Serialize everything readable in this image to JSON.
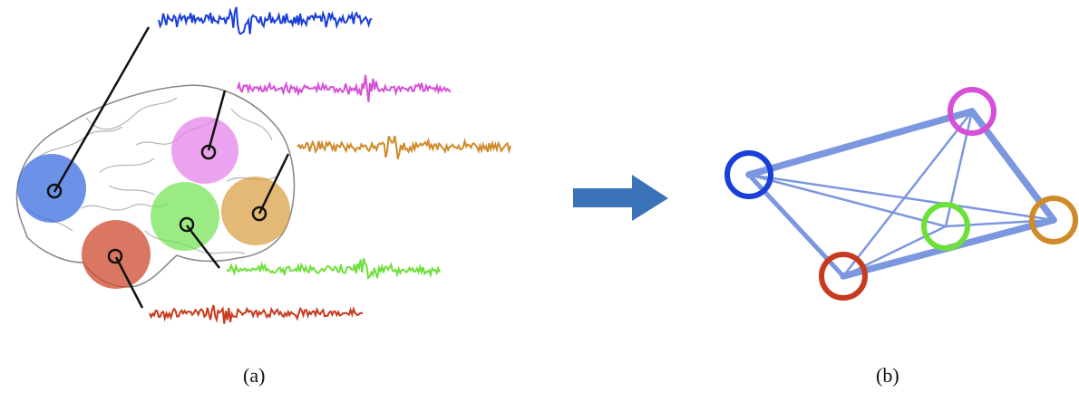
{
  "panels": {
    "a": {
      "caption": "(a)"
    },
    "b": {
      "caption": "(b)"
    }
  },
  "regions": [
    {
      "id": "blue",
      "color": "#3b6de0",
      "signal_color": "#1a3fd8"
    },
    {
      "id": "magenta",
      "color": "#e27ae8",
      "signal_color": "#d64fd8"
    },
    {
      "id": "orange",
      "color": "#d99a3a",
      "signal_color": "#d08a2a"
    },
    {
      "id": "green",
      "color": "#6fe34f",
      "signal_color": "#6ee03a"
    },
    {
      "id": "red",
      "color": "#cc4a2e",
      "signal_color": "#c83a1e"
    }
  ],
  "connections": [
    {
      "from": "blue",
      "to": "magenta",
      "weight": 3
    },
    {
      "from": "blue",
      "to": "orange",
      "weight": 1
    },
    {
      "from": "blue",
      "to": "green",
      "weight": 1
    },
    {
      "from": "blue",
      "to": "red",
      "weight": 2
    },
    {
      "from": "magenta",
      "to": "orange",
      "weight": 3
    },
    {
      "from": "magenta",
      "to": "green",
      "weight": 1
    },
    {
      "from": "magenta",
      "to": "red",
      "weight": 1
    },
    {
      "from": "green",
      "to": "orange",
      "weight": 1
    },
    {
      "from": "green",
      "to": "red",
      "weight": 1
    },
    {
      "from": "red",
      "to": "orange",
      "weight": 3
    }
  ],
  "arrow_color": "#3a73b8",
  "edge_color": "#7b97df",
  "brain_outline_color": "#8a8a8a"
}
